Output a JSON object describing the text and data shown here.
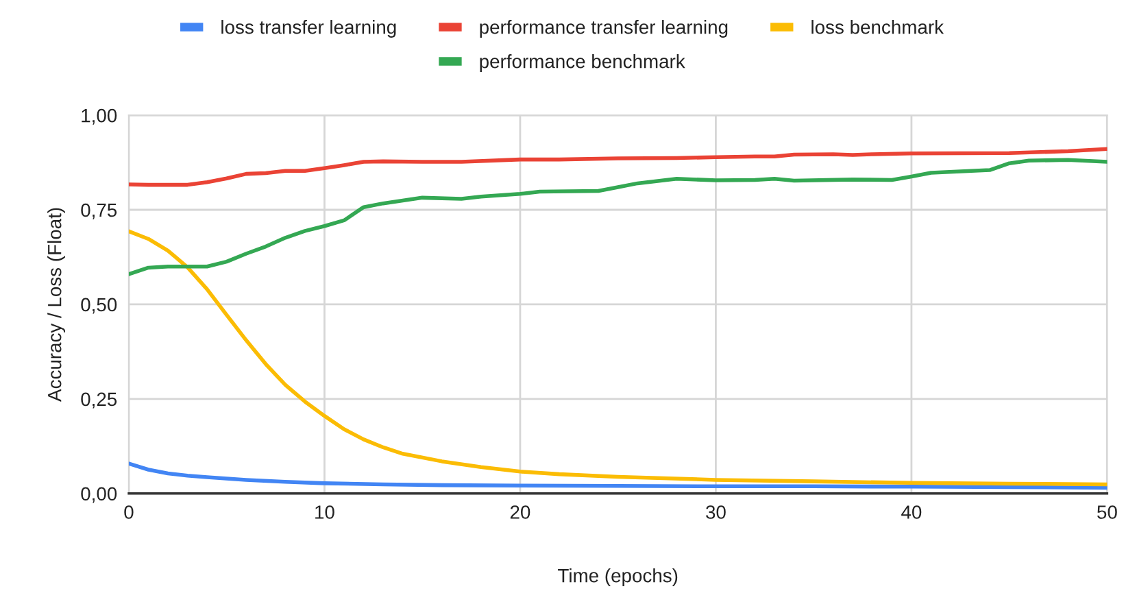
{
  "chart_data": {
    "type": "line",
    "xlabel": "Time (epochs)",
    "ylabel": "Accuracy / Loss (Float)",
    "xlim": [
      0,
      50
    ],
    "xticks": [
      0,
      10,
      20,
      30,
      40,
      50
    ],
    "ylim": [
      0,
      1
    ],
    "yticks": [
      {
        "value": 0,
        "label": "0,00"
      },
      {
        "value": 0.25,
        "label": "0,25"
      },
      {
        "value": 0.5,
        "label": "0,50"
      },
      {
        "value": 0.75,
        "label": "0,75"
      },
      {
        "value": 1,
        "label": "1,00"
      }
    ],
    "grid": true,
    "legend": "top",
    "line_style": "solid",
    "series": [
      {
        "name": "loss transfer learning",
        "color": "#4285f4",
        "x": [
          0,
          1,
          2,
          3,
          4,
          6,
          8,
          10,
          13,
          16,
          20,
          25,
          30,
          35,
          40,
          45,
          50
        ],
        "values": [
          0.079,
          0.063,
          0.053,
          0.047,
          0.043,
          0.036,
          0.031,
          0.027,
          0.024,
          0.022,
          0.021,
          0.02,
          0.019,
          0.019,
          0.018,
          0.017,
          0.015
        ]
      },
      {
        "name": "performance transfer learning",
        "color": "#ea4335",
        "x": [
          0,
          1,
          2,
          3,
          4,
          5,
          6,
          7,
          8,
          9,
          10,
          11,
          12,
          13,
          15,
          17,
          20,
          22,
          25,
          28,
          30,
          32,
          33,
          34,
          36,
          37,
          38,
          40,
          45,
          48,
          50
        ],
        "values": [
          0.817,
          0.816,
          0.816,
          0.816,
          0.823,
          0.833,
          0.845,
          0.847,
          0.853,
          0.853,
          0.86,
          0.868,
          0.877,
          0.878,
          0.877,
          0.877,
          0.883,
          0.883,
          0.886,
          0.887,
          0.889,
          0.891,
          0.891,
          0.896,
          0.897,
          0.895,
          0.897,
          0.899,
          0.9,
          0.905,
          0.911
        ]
      },
      {
        "name": "loss benchmark",
        "color": "#fbbc04",
        "x": [
          0,
          1,
          2,
          3,
          4,
          5,
          6,
          7,
          8,
          9,
          10,
          11,
          12,
          13,
          14,
          16,
          18,
          20,
          22,
          25,
          30,
          35,
          40,
          45,
          50
        ],
        "values": [
          0.693,
          0.673,
          0.642,
          0.598,
          0.54,
          0.472,
          0.405,
          0.342,
          0.287,
          0.243,
          0.205,
          0.17,
          0.143,
          0.122,
          0.105,
          0.085,
          0.07,
          0.058,
          0.051,
          0.044,
          0.036,
          0.032,
          0.028,
          0.026,
          0.024
        ]
      },
      {
        "name": "performance benchmark",
        "color": "#34a853",
        "x": [
          0,
          1,
          2,
          4,
          5,
          6,
          7,
          8,
          9,
          10,
          11,
          12,
          13,
          15,
          17,
          18,
          20,
          21,
          24,
          25,
          26,
          28,
          30,
          32,
          33,
          34,
          37,
          39,
          40,
          41,
          44,
          45,
          46,
          48,
          50
        ],
        "values": [
          0.58,
          0.597,
          0.6,
          0.6,
          0.613,
          0.634,
          0.653,
          0.676,
          0.694,
          0.707,
          0.722,
          0.757,
          0.767,
          0.782,
          0.779,
          0.785,
          0.792,
          0.798,
          0.8,
          0.81,
          0.82,
          0.832,
          0.828,
          0.829,
          0.832,
          0.827,
          0.83,
          0.829,
          0.838,
          0.848,
          0.855,
          0.873,
          0.88,
          0.882,
          0.877
        ]
      }
    ]
  }
}
